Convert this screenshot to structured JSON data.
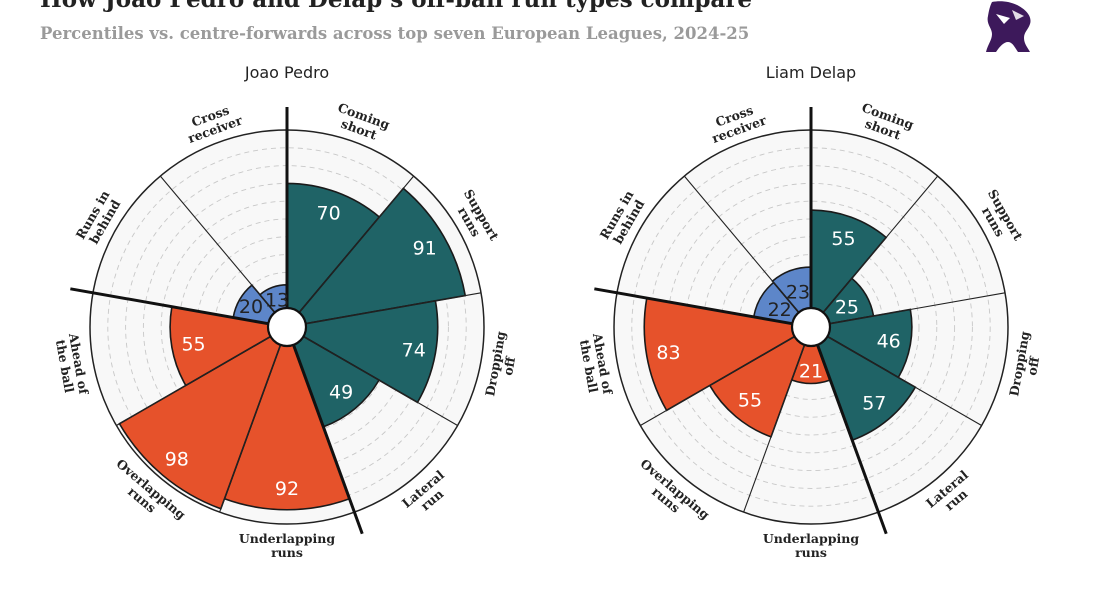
{
  "header": {
    "title": "How Joao Pedro and Delap’s off-ball run types compare",
    "subtitle": "Percentiles vs. centre-forwards across top seven European Leagues, 2024-25"
  },
  "colors": {
    "teal": "#1f6366",
    "orange": "#e6522b",
    "blue": "#5d86c9",
    "grid": "#c8c8c8",
    "background": "#f8f8f8",
    "divider": "#111111",
    "logo": "#3d195b"
  },
  "chart_data": [
    {
      "type": "polar_bar",
      "title": "Joao Pedro",
      "categories": [
        "Coming short",
        "Support runs",
        "Dropping off",
        "Lateral run",
        "Underlapping runs",
        "Overlapping runs",
        "Ahead of the ball",
        "Runs in behind",
        "Cross receiver"
      ],
      "groups": [
        "teal",
        "teal",
        "teal",
        "teal",
        "orange",
        "orange",
        "orange",
        "blue",
        "blue"
      ],
      "values": [
        70,
        91,
        74,
        49,
        92,
        98,
        55,
        20,
        13
      ],
      "rlim": [
        0,
        100
      ]
    },
    {
      "type": "polar_bar",
      "title": "Liam Delap",
      "categories": [
        "Coming short",
        "Support runs",
        "Dropping off",
        "Lateral run",
        "Underlapping runs",
        "Overlapping runs",
        "Ahead of the ball",
        "Runs in behind",
        "Cross receiver"
      ],
      "groups": [
        "teal",
        "teal",
        "teal",
        "teal",
        "orange",
        "orange",
        "orange",
        "blue",
        "blue"
      ],
      "values": [
        55,
        25,
        46,
        57,
        21,
        55,
        83,
        22,
        23
      ],
      "rlim": [
        0,
        100
      ]
    }
  ]
}
